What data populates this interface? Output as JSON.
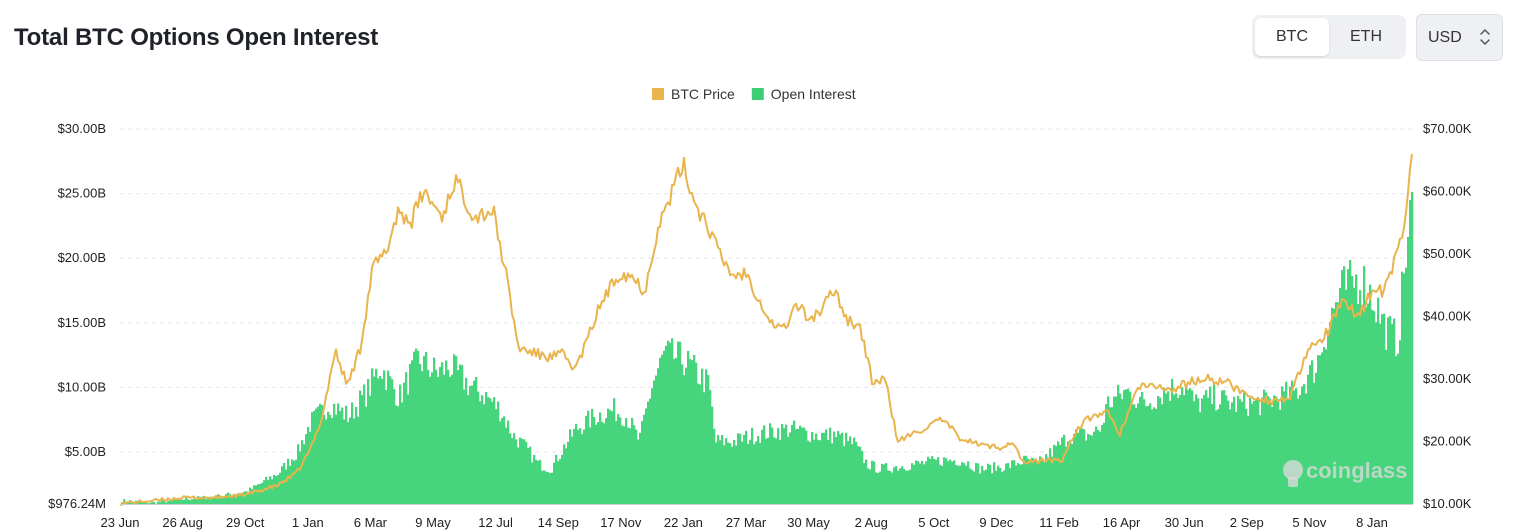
{
  "header": {
    "title": "Total BTC Options Open Interest",
    "coin_tabs": [
      {
        "label": "BTC",
        "active": true
      },
      {
        "label": "ETH",
        "active": false
      }
    ],
    "currency_select": {
      "value": "USD"
    }
  },
  "watermark": "coinglass",
  "colors": {
    "price": "#e9b44c",
    "oi": "#3dcd74",
    "oi_fill": "#46d47c",
    "grid": "#e6e6e6"
  },
  "chart_data": {
    "type": "bar",
    "title": "Total BTC Options Open Interest",
    "legend": [
      {
        "name": "BTC Price",
        "color": "#e9b44c",
        "kind": "line"
      },
      {
        "name": "Open Interest",
        "color": "#3dcd74",
        "kind": "bar"
      }
    ],
    "legend_position": "top-center",
    "grid": "horizontal",
    "x_tick_labels": [
      "23 Jun",
      "26 Aug",
      "29 Oct",
      "1 Jan",
      "6 Mar",
      "9 May",
      "12 Jul",
      "14 Sep",
      "17 Nov",
      "22 Jan",
      "27 Mar",
      "30 May",
      "2 Aug",
      "5 Oct",
      "9 Dec",
      "11 Feb",
      "16 Apr",
      "30 Jun",
      "2 Sep",
      "5 Nov",
      "8 Jan"
    ],
    "y_left": {
      "tick_labels": [
        "$976.24M",
        "$5.00B",
        "$10.00B",
        "$15.00B",
        "$20.00B",
        "$25.00B",
        "$30.00B"
      ],
      "tick_values": [
        976240000,
        5000000000,
        10000000000,
        15000000000,
        20000000000,
        25000000000,
        30000000000
      ],
      "range": [
        976240000,
        30000000000
      ]
    },
    "y_right": {
      "tick_labels": [
        "$10.00K",
        "$20.00K",
        "$30.00K",
        "$40.00K",
        "$50.00K",
        "$60.00K",
        "$70.00K"
      ],
      "tick_values": [
        10000,
        20000,
        30000,
        40000,
        50000,
        60000,
        70000
      ],
      "range": [
        10000,
        70000
      ]
    },
    "x_range": [
      0,
      20.45
    ],
    "series": [
      {
        "name": "Open Interest",
        "axis": "left",
        "points": [
          [
            0,
            1.3
          ],
          [
            0.5,
            1.1
          ],
          [
            1,
            1.4
          ],
          [
            1.5,
            1.6
          ],
          [
            2,
            2.0
          ],
          [
            2.5,
            3.5
          ],
          [
            2.8,
            5.2
          ],
          [
            3.0,
            7.5
          ],
          [
            3.3,
            9.0
          ],
          [
            3.6,
            8.0
          ],
          [
            3.9,
            10.0
          ],
          [
            4.1,
            12.0
          ],
          [
            4.4,
            9.5
          ],
          [
            4.7,
            12.5
          ],
          [
            5.0,
            11.5
          ],
          [
            5.2,
            12.0
          ],
          [
            5.5,
            10.5
          ],
          [
            5.8,
            9.5
          ],
          [
            6.0,
            8.5
          ],
          [
            6.2,
            6.5
          ],
          [
            6.4,
            5.5
          ],
          [
            6.6,
            4.2
          ],
          [
            6.8,
            3.8
          ],
          [
            7.0,
            5.5
          ],
          [
            7.2,
            7.0
          ],
          [
            7.5,
            8.0
          ],
          [
            7.8,
            8.5
          ],
          [
            8.0,
            8.0
          ],
          [
            8.2,
            6.0
          ],
          [
            8.4,
            10.5
          ],
          [
            8.6,
            13.0
          ],
          [
            8.9,
            12.5
          ],
          [
            9.2,
            11.0
          ],
          [
            9.3,
            10.5
          ],
          [
            9.4,
            6.0
          ],
          [
            9.7,
            6.0
          ],
          [
            10.0,
            6.5
          ],
          [
            10.3,
            6.8
          ],
          [
            10.6,
            7.0
          ],
          [
            11.0,
            6.5
          ],
          [
            11.3,
            6.5
          ],
          [
            11.6,
            5.8
          ],
          [
            11.8,
            4.2
          ],
          [
            12.0,
            3.8
          ],
          [
            12.3,
            4.0
          ],
          [
            12.6,
            4.2
          ],
          [
            13.0,
            4.5
          ],
          [
            13.3,
            4.5
          ],
          [
            13.6,
            3.8
          ],
          [
            14.0,
            4.0
          ],
          [
            14.3,
            4.5
          ],
          [
            14.5,
            4.2
          ],
          [
            14.8,
            5.5
          ],
          [
            15.0,
            6.5
          ],
          [
            15.3,
            6.5
          ],
          [
            15.5,
            7.0
          ],
          [
            15.6,
            9.0
          ],
          [
            15.9,
            10.0
          ],
          [
            16.2,
            9.0
          ],
          [
            16.5,
            10.0
          ],
          [
            16.8,
            10.5
          ],
          [
            17.0,
            9.0
          ],
          [
            17.3,
            9.5
          ],
          [
            17.6,
            9.0
          ],
          [
            18.0,
            9.0
          ],
          [
            18.3,
            9.5
          ],
          [
            18.6,
            10.0
          ],
          [
            18.9,
            12.0
          ],
          [
            19.1,
            15.5
          ],
          [
            19.3,
            18.0
          ],
          [
            19.6,
            19.0
          ],
          [
            19.8,
            17.5
          ],
          [
            20.0,
            15.0
          ],
          [
            20.2,
            14.0
          ],
          [
            20.3,
            20.0
          ],
          [
            20.45,
            26.0
          ]
        ]
      },
      {
        "name": "BTC Price",
        "axis": "right",
        "points": [
          [
            0,
            10100
          ],
          [
            0.5,
            10500
          ],
          [
            1,
            11000
          ],
          [
            1.5,
            11000
          ],
          [
            2,
            11500
          ],
          [
            2.5,
            13000
          ],
          [
            2.8,
            15000
          ],
          [
            3.0,
            18500
          ],
          [
            3.2,
            24000
          ],
          [
            3.4,
            34500
          ],
          [
            3.6,
            29000
          ],
          [
            3.8,
            35000
          ],
          [
            4.0,
            48000
          ],
          [
            4.2,
            50000
          ],
          [
            4.4,
            57000
          ],
          [
            4.6,
            55000
          ],
          [
            4.8,
            60000
          ],
          [
            5.1,
            56000
          ],
          [
            5.3,
            62000
          ],
          [
            5.6,
            56000
          ],
          [
            5.9,
            57000
          ],
          [
            6.1,
            47000
          ],
          [
            6.3,
            35000
          ],
          [
            6.6,
            34000
          ],
          [
            6.8,
            33500
          ],
          [
            7.0,
            34000
          ],
          [
            7.2,
            31500
          ],
          [
            7.4,
            36500
          ],
          [
            7.6,
            42000
          ],
          [
            7.9,
            47000
          ],
          [
            8.1,
            46500
          ],
          [
            8.3,
            44000
          ],
          [
            8.5,
            54000
          ],
          [
            8.7,
            59000
          ],
          [
            8.9,
            64500
          ],
          [
            9.1,
            58000
          ],
          [
            9.3,
            54500
          ],
          [
            9.5,
            49500
          ],
          [
            9.7,
            46500
          ],
          [
            9.9,
            47000
          ],
          [
            10.1,
            43000
          ],
          [
            10.3,
            39000
          ],
          [
            10.5,
            38000
          ],
          [
            10.7,
            42000
          ],
          [
            10.9,
            39500
          ],
          [
            11.1,
            41000
          ],
          [
            11.3,
            44500
          ],
          [
            11.5,
            39500
          ],
          [
            11.7,
            38500
          ],
          [
            11.9,
            29500
          ],
          [
            12.1,
            30000
          ],
          [
            12.3,
            20000
          ],
          [
            12.5,
            21000
          ],
          [
            12.8,
            22500
          ],
          [
            13.0,
            23500
          ],
          [
            13.3,
            20500
          ],
          [
            13.6,
            19500
          ],
          [
            13.9,
            19000
          ],
          [
            14.1,
            20000
          ],
          [
            14.3,
            16500
          ],
          [
            14.6,
            17000
          ],
          [
            14.9,
            17000
          ],
          [
            15.1,
            21500
          ],
          [
            15.3,
            23500
          ],
          [
            15.6,
            25000
          ],
          [
            15.8,
            21000
          ],
          [
            16.1,
            28500
          ],
          [
            16.4,
            29000
          ],
          [
            16.6,
            28000
          ],
          [
            16.9,
            29500
          ],
          [
            17.2,
            30000
          ],
          [
            17.5,
            29500
          ],
          [
            17.8,
            27500
          ],
          [
            18.2,
            26500
          ],
          [
            18.5,
            27000
          ],
          [
            18.8,
            34500
          ],
          [
            19.1,
            37500
          ],
          [
            19.3,
            42000
          ],
          [
            19.6,
            40500
          ],
          [
            19.8,
            44000
          ],
          [
            20.0,
            44000
          ],
          [
            20.2,
            50000
          ],
          [
            20.3,
            54000
          ],
          [
            20.45,
            67000
          ]
        ]
      }
    ]
  }
}
